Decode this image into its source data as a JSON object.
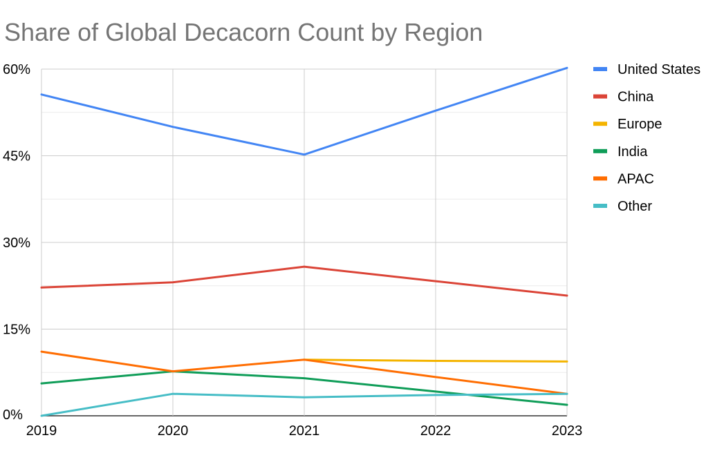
{
  "chart_data": {
    "type": "line",
    "title": "Share of Global Decacorn Count by Region",
    "xlabel": "",
    "ylabel": "",
    "x": [
      "2019",
      "2020",
      "2021",
      "2022",
      "2023"
    ],
    "ylim": [
      0,
      60
    ],
    "y_ticks": [
      0,
      15,
      30,
      45,
      60
    ],
    "y_tick_labels": [
      "0%",
      "15%",
      "30%",
      "45%",
      "60%"
    ],
    "grid": true,
    "legend_position": "right",
    "series": [
      {
        "name": "United States",
        "color": "#4285f4",
        "values": [
          55.6,
          50.0,
          45.2,
          52.8,
          60.2
        ]
      },
      {
        "name": "China",
        "color": "#db4437",
        "values": [
          22.2,
          23.1,
          25.8,
          23.3,
          20.8
        ]
      },
      {
        "name": "Europe",
        "color": "#f4b400",
        "values": [
          null,
          null,
          9.7,
          9.5,
          9.4
        ]
      },
      {
        "name": "India",
        "color": "#0f9d58",
        "values": [
          5.6,
          7.7,
          6.5,
          4.2,
          1.9
        ]
      },
      {
        "name": "APAC",
        "color": "#ff6d01",
        "values": [
          11.1,
          7.7,
          9.7,
          6.7,
          3.8
        ]
      },
      {
        "name": "Other",
        "color": "#46bdc6",
        "values": [
          0.0,
          3.8,
          3.2,
          3.6,
          3.8
        ]
      }
    ]
  }
}
